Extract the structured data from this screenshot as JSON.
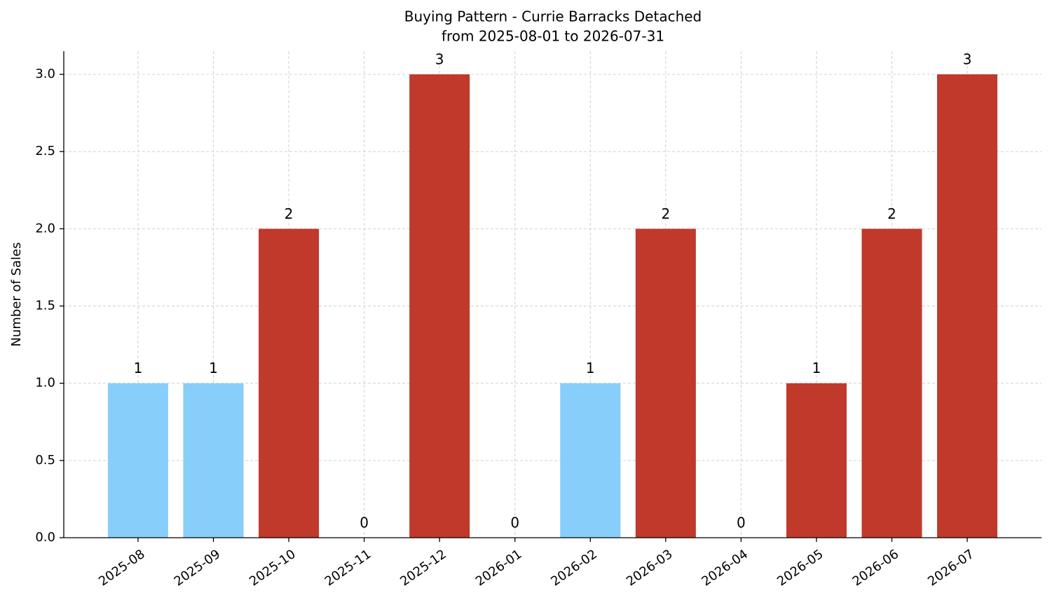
{
  "chart_data": {
    "type": "bar",
    "title": "Buying Pattern - Currie Barracks Detached",
    "subtitle": "from 2025-08-01 to 2026-07-31",
    "y_label": "Number of Sales",
    "categories": [
      "2025-08",
      "2025-09",
      "2025-10",
      "2025-11",
      "2025-12",
      "2026-01",
      "2026-02",
      "2026-03",
      "2026-04",
      "2026-05",
      "2026-06",
      "2026-07"
    ],
    "values": [
      1,
      1,
      2,
      0,
      3,
      0,
      1,
      2,
      0,
      1,
      2,
      3
    ],
    "colors": [
      "#87cefa",
      "#87cefa",
      "#c0392b",
      "#c0392b",
      "#c0392b",
      "#c0392b",
      "#87cefa",
      "#c0392b",
      "#c0392b",
      "#c0392b",
      "#c0392b",
      "#c0392b"
    ],
    "ylim": [
      0,
      3.15
    ],
    "yticks": [
      {
        "value": 0,
        "label": "0.0"
      },
      0.5,
      {
        "value": 1,
        "label": "1.0"
      },
      1.5,
      {
        "value": 2,
        "label": "2.0"
      },
      2.5,
      {
        "value": 3,
        "label": "3.0"
      }
    ],
    "grid": true
  }
}
